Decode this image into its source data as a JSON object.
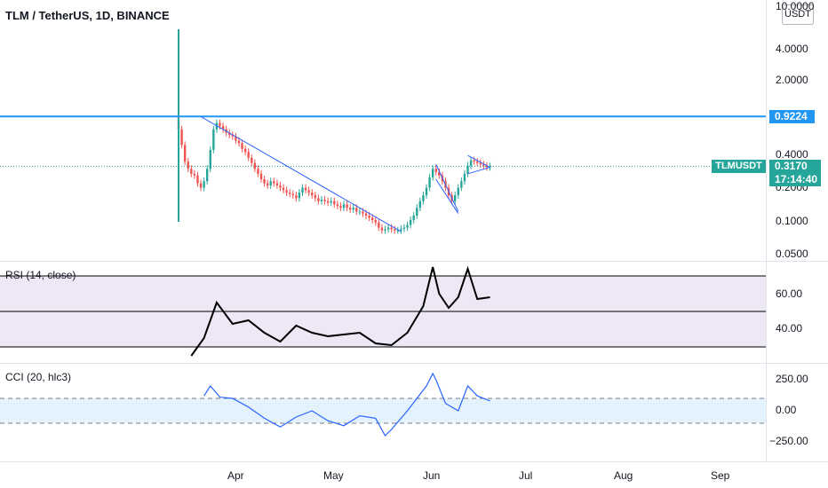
{
  "header": {
    "title": "TLM / TetherUS, 1D, BINANCE",
    "currency": "USDT"
  },
  "price_axis": {
    "ticks": [
      "10.0000",
      "4.0000",
      "2.0000",
      "0.4000",
      "0.2000",
      "0.1000",
      "0.0500"
    ]
  },
  "tags": {
    "resistance_level": "0.9224",
    "symbol": "TLMUSDT",
    "last_price": "0.3170",
    "countdown": "17:14:40"
  },
  "rsi_pane": {
    "label": "RSI (14, close)",
    "ticks": [
      "60.00",
      "40.00"
    ]
  },
  "cci_pane": {
    "label": "CCI (20, hlc3)",
    "ticks": [
      "250.00",
      "0.00",
      "−250.00"
    ]
  },
  "time_axis": {
    "ticks": [
      "Apr",
      "May",
      "Jun",
      "Jul",
      "Aug",
      "Sep"
    ]
  },
  "colors": {
    "up": "#26a69a",
    "down": "#ef5350",
    "level": "#2196f3",
    "trendline": "#2962ff",
    "rsi_line": "#000000",
    "cci_line": "#2962ff",
    "rsi_band": "#ede7f6",
    "cci_band": "#e3f2fd",
    "grid": "#b2b5be"
  },
  "chart_data": [
    {
      "type": "candlestick",
      "title": "TLM / TetherUS, 1D, BINANCE",
      "scale": "log",
      "ylim": [
        0.05,
        10
      ],
      "dates": [
        "2021-03-24",
        "2021-03-25",
        "2021-03-26",
        "2021-03-27",
        "2021-03-28",
        "2021-03-29",
        "2021-03-30",
        "2021-03-31",
        "2021-04-01",
        "2021-04-02",
        "2021-04-03",
        "2021-04-04",
        "2021-04-05",
        "2021-04-06",
        "2021-04-07",
        "2021-04-08",
        "2021-04-09",
        "2021-04-10",
        "2021-04-11",
        "2021-04-12",
        "2021-04-13",
        "2021-04-14",
        "2021-04-15",
        "2021-04-16",
        "2021-04-17",
        "2021-04-18",
        "2021-04-19",
        "2021-04-20",
        "2021-04-21",
        "2021-04-22",
        "2021-04-23",
        "2021-04-24",
        "2021-04-25",
        "2021-04-26",
        "2021-04-27",
        "2021-04-28",
        "2021-04-29",
        "2021-04-30",
        "2021-05-01",
        "2021-05-02",
        "2021-05-03",
        "2021-05-04",
        "2021-05-05",
        "2021-05-06",
        "2021-05-07",
        "2021-05-08",
        "2021-05-09",
        "2021-05-10",
        "2021-05-11",
        "2021-05-12",
        "2021-05-13",
        "2021-05-14",
        "2021-05-15",
        "2021-05-16",
        "2021-05-17",
        "2021-05-18",
        "2021-05-19",
        "2021-05-20",
        "2021-05-21",
        "2021-05-22",
        "2021-05-23",
        "2021-05-24",
        "2021-05-25",
        "2021-05-26",
        "2021-05-27",
        "2021-05-28",
        "2021-05-29",
        "2021-05-30",
        "2021-05-31",
        "2021-06-01",
        "2021-06-02",
        "2021-06-03",
        "2021-06-04",
        "2021-06-05",
        "2021-06-06",
        "2021-06-07",
        "2021-06-08",
        "2021-06-09",
        "2021-06-10",
        "2021-06-11",
        "2021-06-12",
        "2021-06-13",
        "2021-06-14",
        "2021-06-15",
        "2021-06-16",
        "2021-06-17",
        "2021-06-18",
        "2021-06-19",
        "2021-06-20",
        "2021-06-21",
        "2021-06-22",
        "2021-06-23",
        "2021-06-24",
        "2021-06-25",
        "2021-06-26",
        "2021-06-27",
        "2021-06-28",
        "2021-06-29",
        "2021-06-30"
      ],
      "close": [
        0.7,
        0.5,
        0.35,
        0.3,
        0.27,
        0.26,
        0.22,
        0.2,
        0.23,
        0.3,
        0.45,
        0.7,
        0.8,
        0.75,
        0.7,
        0.65,
        0.62,
        0.6,
        0.55,
        0.52,
        0.46,
        0.43,
        0.38,
        0.34,
        0.3,
        0.27,
        0.24,
        0.22,
        0.21,
        0.23,
        0.22,
        0.21,
        0.2,
        0.19,
        0.18,
        0.175,
        0.17,
        0.16,
        0.18,
        0.2,
        0.19,
        0.18,
        0.17,
        0.16,
        0.15,
        0.155,
        0.15,
        0.145,
        0.15,
        0.14,
        0.135,
        0.13,
        0.14,
        0.13,
        0.125,
        0.13,
        0.12,
        0.12,
        0.115,
        0.11,
        0.105,
        0.1,
        0.095,
        0.085,
        0.08,
        0.082,
        0.085,
        0.082,
        0.08,
        0.08,
        0.083,
        0.085,
        0.09,
        0.1,
        0.11,
        0.13,
        0.15,
        0.17,
        0.2,
        0.25,
        0.3,
        0.28,
        0.26,
        0.23,
        0.2,
        0.17,
        0.15,
        0.17,
        0.2,
        0.23,
        0.27,
        0.32,
        0.36,
        0.35,
        0.34,
        0.33,
        0.32,
        0.31,
        0.317
      ],
      "levels": [
        0.9224
      ],
      "last_price": 0.317
    },
    {
      "type": "line",
      "title": "RSI (14, close)",
      "ylim": [
        24,
        80
      ],
      "bands": [
        30,
        50,
        70
      ],
      "x": [
        "2021-03-28",
        "2021-04-01",
        "2021-04-05",
        "2021-04-10",
        "2021-04-15",
        "2021-04-20",
        "2021-04-25",
        "2021-04-30",
        "2021-05-05",
        "2021-05-10",
        "2021-05-15",
        "2021-05-20",
        "2021-05-25",
        "2021-05-30",
        "2021-06-04",
        "2021-06-09",
        "2021-06-12",
        "2021-06-14",
        "2021-06-17",
        "2021-06-20",
        "2021-06-23",
        "2021-06-26",
        "2021-06-30"
      ],
      "y": [
        25,
        35,
        55,
        43,
        45,
        38,
        33,
        42,
        38,
        36,
        37,
        38,
        32,
        31,
        38,
        53,
        75,
        60,
        52,
        58,
        74,
        57,
        58
      ]
    },
    {
      "type": "line",
      "title": "CCI (20, hlc3)",
      "ylim": [
        -350,
        320
      ],
      "bands": [
        -100,
        0,
        100
      ],
      "x": [
        "2021-04-01",
        "2021-04-03",
        "2021-04-06",
        "2021-04-10",
        "2021-04-15",
        "2021-04-20",
        "2021-04-25",
        "2021-04-30",
        "2021-05-05",
        "2021-05-10",
        "2021-05-15",
        "2021-05-20",
        "2021-05-25",
        "2021-05-28",
        "2021-05-30",
        "2021-06-04",
        "2021-06-07",
        "2021-06-10",
        "2021-06-12",
        "2021-06-13",
        "2021-06-16",
        "2021-06-20",
        "2021-06-23",
        "2021-06-26",
        "2021-06-30"
      ],
      "y": [
        120,
        200,
        110,
        100,
        30,
        -60,
        -130,
        -50,
        0,
        -80,
        -120,
        -40,
        -60,
        -200,
        -150,
        0,
        100,
        200,
        300,
        250,
        60,
        0,
        200,
        120,
        80
      ]
    }
  ]
}
